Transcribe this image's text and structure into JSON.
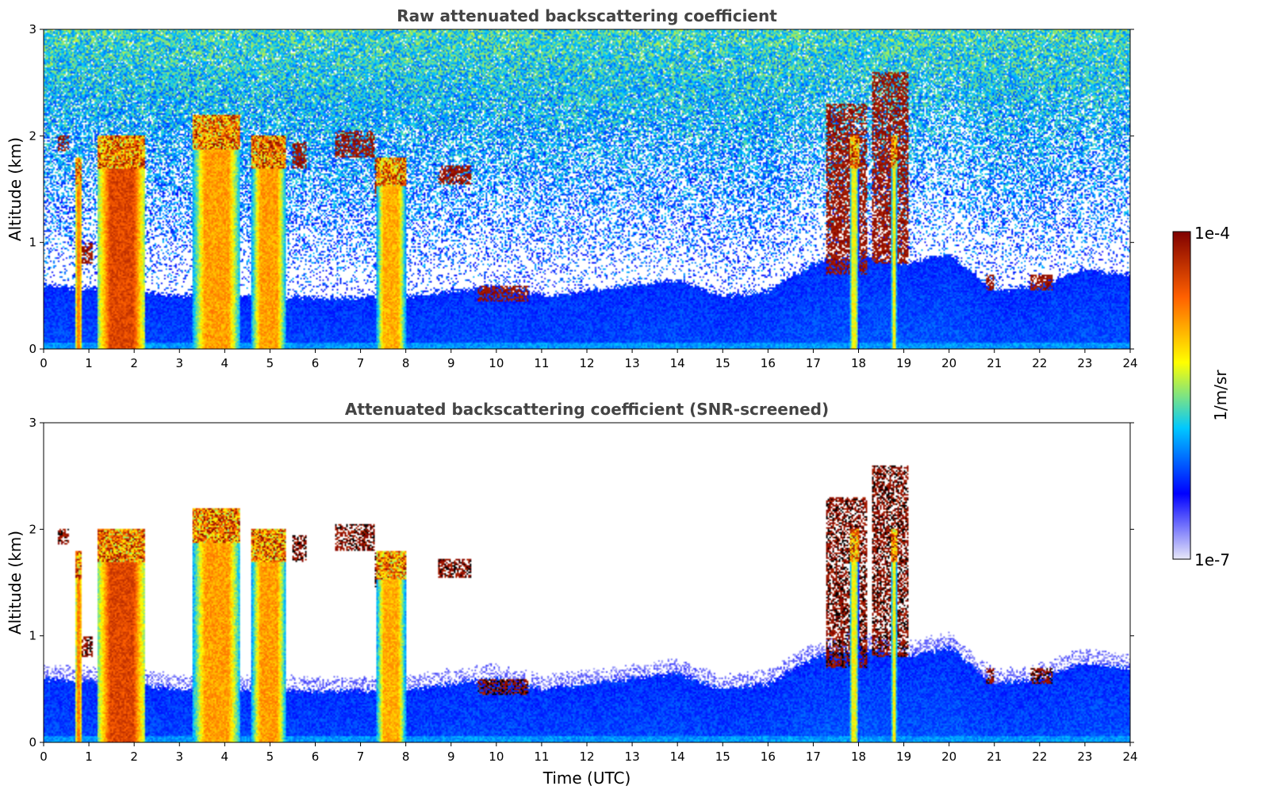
{
  "chart_data": [
    {
      "type": "heatmap",
      "title": "Raw attenuated backscattering coefficient",
      "xlabel": "",
      "ylabel": "Altitude (km)",
      "xlim": [
        0,
        24
      ],
      "ylim": [
        0,
        3
      ],
      "xticks": [
        0,
        1,
        2,
        3,
        4,
        5,
        6,
        7,
        8,
        9,
        10,
        11,
        12,
        13,
        14,
        15,
        16,
        17,
        18,
        19,
        20,
        21,
        22,
        23,
        24
      ],
      "yticks": [
        0,
        1,
        2,
        3
      ],
      "screened": false
    },
    {
      "type": "heatmap",
      "title": "Attenuated backscattering coefficient (SNR-screened)",
      "xlabel": "Time (UTC)",
      "ylabel": "Altitude (km)",
      "xlim": [
        0,
        24
      ],
      "ylim": [
        0,
        3
      ],
      "xticks": [
        0,
        1,
        2,
        3,
        4,
        5,
        6,
        7,
        8,
        9,
        10,
        11,
        12,
        13,
        14,
        15,
        16,
        17,
        18,
        19,
        20,
        21,
        22,
        23,
        24
      ],
      "yticks": [
        0,
        1,
        2,
        3
      ],
      "screened": true
    }
  ],
  "colorbar": {
    "label": "1/m/sr",
    "max_label": "1e-4",
    "min_label": "1e-7",
    "scale": "log",
    "range": [
      1e-07,
      0.0001
    ],
    "colormap": [
      "#e8e8f8",
      "#0000ff",
      "#00c8ff",
      "#ffff00",
      "#ff6000",
      "#7f0000"
    ]
  },
  "features": {
    "boundary_layer_top_km": [
      [
        0,
        0.6
      ],
      [
        2,
        0.55
      ],
      [
        3,
        0.5
      ],
      [
        5,
        0.5
      ],
      [
        6,
        0.48
      ],
      [
        8,
        0.5
      ],
      [
        9,
        0.55
      ],
      [
        10,
        0.6
      ],
      [
        11,
        0.5
      ],
      [
        12,
        0.55
      ],
      [
        13,
        0.6
      ],
      [
        14,
        0.65
      ],
      [
        15,
        0.5
      ],
      [
        16,
        0.55
      ],
      [
        17,
        0.8
      ],
      [
        18,
        0.9
      ],
      [
        19,
        0.8
      ],
      [
        20,
        0.9
      ],
      [
        21,
        0.55
      ],
      [
        22,
        0.6
      ],
      [
        23,
        0.75
      ],
      [
        24,
        0.7
      ]
    ],
    "precipitation_columns": [
      {
        "t0": 0.7,
        "t1": 0.85,
        "top_km": 1.8,
        "intensity": 0.75
      },
      {
        "t0": 1.2,
        "t1": 2.25,
        "top_km": 2.0,
        "intensity": 0.85
      },
      {
        "t0": 3.3,
        "t1": 4.35,
        "top_km": 2.2,
        "intensity": 0.72
      },
      {
        "t0": 4.6,
        "t1": 5.35,
        "top_km": 2.0,
        "intensity": 0.72
      },
      {
        "t0": 7.35,
        "t1": 8.0,
        "top_km": 1.8,
        "intensity": 0.7
      },
      {
        "t0": 17.8,
        "t1": 18.0,
        "top_km": 2.0,
        "intensity": 0.6
      },
      {
        "t0": 18.72,
        "t1": 18.85,
        "top_km": 2.0,
        "intensity": 0.6
      }
    ],
    "cloud_patches": [
      {
        "t0": 0.3,
        "t1": 0.55,
        "h0_km": 1.85,
        "h1_km": 2.0
      },
      {
        "t0": 0.8,
        "t1": 1.1,
        "h0_km": 0.8,
        "h1_km": 1.0
      },
      {
        "t0": 5.5,
        "t1": 5.8,
        "h0_km": 1.7,
        "h1_km": 1.95
      },
      {
        "t0": 6.45,
        "t1": 7.3,
        "h0_km": 1.8,
        "h1_km": 2.05
      },
      {
        "t0": 7.3,
        "t1": 8.0,
        "h0_km": 1.4,
        "h1_km": 1.8
      },
      {
        "t0": 8.7,
        "t1": 9.45,
        "h0_km": 1.55,
        "h1_km": 1.72
      },
      {
        "t0": 9.6,
        "t1": 10.7,
        "h0_km": 0.45,
        "h1_km": 0.6
      },
      {
        "t0": 17.3,
        "t1": 18.2,
        "h0_km": 0.7,
        "h1_km": 2.3
      },
      {
        "t0": 18.3,
        "t1": 19.1,
        "h0_km": 0.8,
        "h1_km": 2.6
      },
      {
        "t0": 20.8,
        "t1": 21.0,
        "h0_km": 0.55,
        "h1_km": 0.7
      },
      {
        "t0": 21.8,
        "t1": 22.3,
        "h0_km": 0.55,
        "h1_km": 0.7
      }
    ]
  }
}
